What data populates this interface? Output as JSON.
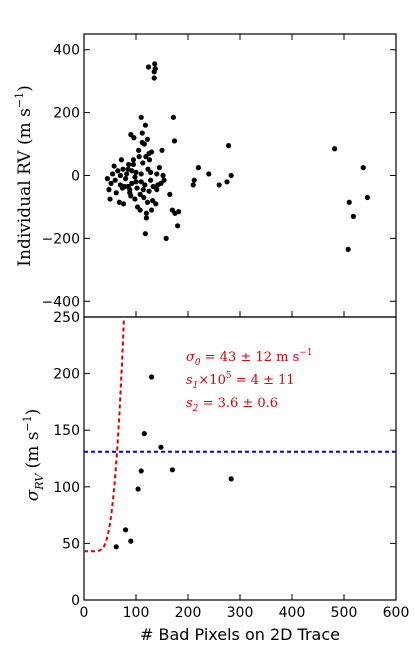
{
  "chart_data": [
    {
      "type": "scatter",
      "ylabel": "Individual RV (m s",
      "ylabel_sup": "−1",
      "ylabel_close": ")",
      "xlim": [
        0,
        600
      ],
      "ylim": [
        -450,
        450
      ],
      "yticks": [
        -400,
        -200,
        0,
        200,
        400
      ],
      "ytick_labels": [
        "−400",
        "−200",
        "0",
        "200",
        "400"
      ],
      "series": [
        {
          "points": [
            [
              45,
              -10
            ],
            [
              48,
              -45
            ],
            [
              50,
              -75
            ],
            [
              52,
              -25
            ],
            [
              55,
              5
            ],
            [
              58,
              30
            ],
            [
              60,
              -15
            ],
            [
              62,
              -55
            ],
            [
              65,
              15
            ],
            [
              68,
              -85
            ],
            [
              70,
              0
            ],
            [
              70,
              -30
            ],
            [
              72,
              50
            ],
            [
              74,
              -40
            ],
            [
              75,
              20
            ],
            [
              76,
              -90
            ],
            [
              78,
              -35
            ],
            [
              80,
              -10
            ],
            [
              82,
              5
            ],
            [
              85,
              20
            ],
            [
              85,
              -35
            ],
            [
              86,
              35
            ],
            [
              88,
              -45
            ],
            [
              88,
              -55
            ],
            [
              90,
              -65
            ],
            [
              90,
              130
            ],
            [
              92,
              -25
            ],
            [
              92,
              15
            ],
            [
              95,
              50
            ],
            [
              95,
              35
            ],
            [
              96,
              120
            ],
            [
              98,
              -5
            ],
            [
              98,
              -75
            ],
            [
              100,
              10
            ],
            [
              100,
              -20
            ],
            [
              102,
              -40
            ],
            [
              103,
              -100
            ],
            [
              105,
              80
            ],
            [
              106,
              60
            ],
            [
              108,
              -60
            ],
            [
              108,
              -110
            ],
            [
              110,
              185
            ],
            [
              110,
              5
            ],
            [
              110,
              -20
            ],
            [
              112,
              135
            ],
            [
              112,
              105
            ],
            [
              113,
              40
            ],
            [
              114,
              -45
            ],
            [
              115,
              -70
            ],
            [
              116,
              100
            ],
            [
              117,
              -30
            ],
            [
              118,
              -185
            ],
            [
              118,
              160
            ],
            [
              119,
              60
            ],
            [
              120,
              -135
            ],
            [
              120,
              -120
            ],
            [
              122,
              115
            ],
            [
              122,
              -85
            ],
            [
              123,
              20
            ],
            [
              124,
              345
            ],
            [
              125,
              -50
            ],
            [
              125,
              70
            ],
            [
              126,
              50
            ],
            [
              128,
              -15
            ],
            [
              128,
              10
            ],
            [
              130,
              -110
            ],
            [
              130,
              75
            ],
            [
              132,
              -80
            ],
            [
              133,
              -35
            ],
            [
              135,
              310
            ],
            [
              135,
              330
            ],
            [
              136,
              355
            ],
            [
              137,
              340
            ],
            [
              138,
              -90
            ],
            [
              140,
              -45
            ],
            [
              140,
              5
            ],
            [
              142,
              -30
            ],
            [
              145,
              25
            ],
            [
              148,
              -25
            ],
            [
              150,
              80
            ],
            [
              152,
              0
            ],
            [
              154,
              -15
            ],
            [
              158,
              -200
            ],
            [
              165,
              -60
            ],
            [
              170,
              -110
            ],
            [
              172,
              185
            ],
            [
              174,
              110
            ],
            [
              175,
              -120
            ],
            [
              180,
              -160
            ],
            [
              182,
              -115
            ],
            [
              210,
              -30
            ],
            [
              212,
              -15
            ],
            [
              220,
              25
            ],
            [
              240,
              5
            ],
            [
              260,
              -30
            ],
            [
              275,
              -20
            ],
            [
              278,
              95
            ],
            [
              283,
              0
            ],
            [
              482,
              85
            ],
            [
              508,
              -235
            ],
            [
              510,
              -85
            ],
            [
              518,
              -130
            ],
            [
              537,
              25
            ],
            [
              545,
              -70
            ]
          ]
        }
      ]
    },
    {
      "type": "scatter",
      "xlabel": "# Bad Pixels on 2D Trace",
      "ylabel_sym": "σ",
      "ylabel_sub": "RV",
      "ylabel_rest": " (m s",
      "ylabel_sup": "−1",
      "ylabel_close": ")",
      "xlim": [
        0,
        600
      ],
      "ylim": [
        0,
        250
      ],
      "xticks": [
        0,
        100,
        200,
        300,
        400,
        500,
        600
      ],
      "xtick_labels": [
        "0",
        "100",
        "200",
        "300",
        "400",
        "500",
        "600"
      ],
      "yticks": [
        0,
        50,
        100,
        150,
        200,
        250
      ],
      "ytick_labels": [
        "0",
        "50",
        "100",
        "150",
        "200",
        "250"
      ],
      "points": [
        [
          62,
          47
        ],
        [
          80,
          62
        ],
        [
          90,
          52
        ],
        [
          104,
          98
        ],
        [
          110,
          114
        ],
        [
          116,
          147
        ],
        [
          130,
          197
        ],
        [
          148,
          135
        ],
        [
          170,
          115
        ],
        [
          283,
          107
        ]
      ],
      "hline": 131,
      "fit": {
        "sigma0": 43,
        "s1": 4e-05,
        "s2": 3.6,
        "color": "#e00000"
      },
      "hline_color": "#0000ee",
      "annotations": [
        {
          "sym": "σ",
          "sub": "0",
          "text": " = 43 ± 12 m s",
          "sup": "−1"
        },
        {
          "sym": "s",
          "sub": "1",
          "mid": "×10",
          "sup5": "5",
          "text": " = 4 ± 11"
        },
        {
          "sym": "s",
          "sub": "2",
          "text": " = 3.6 ± 0.6"
        }
      ]
    }
  ]
}
